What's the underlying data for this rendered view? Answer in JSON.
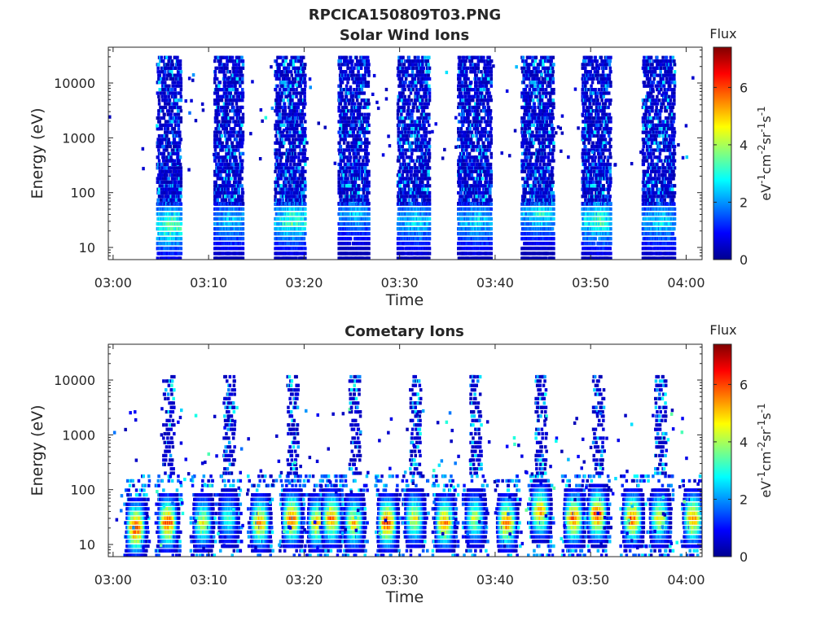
{
  "figure": {
    "filename": "RPCICA150809T03.PNG"
  },
  "colors": {
    "jet": [
      "#00008f",
      "#0000ff",
      "#0080ff",
      "#00ffff",
      "#80ff80",
      "#ffff00",
      "#ff8000",
      "#ff0000",
      "#800000"
    ],
    "axis": "#262626",
    "background": "#ffffff"
  },
  "chart_data": [
    {
      "type": "heatmap",
      "title": "Solar Wind Ions",
      "xlabel": "Time",
      "ylabel": "Energy (eV)",
      "xlim": [
        "02:59:30",
        "04:01:40"
      ],
      "ylim": [
        6,
        45000
      ],
      "y_scale": "log",
      "x_ticks": [
        "03:00",
        "03:10",
        "03:20",
        "03:30",
        "03:40",
        "03:50",
        "04:00"
      ],
      "y_ticks": [
        10,
        100,
        1000,
        10000
      ],
      "y_tick_labels": [
        "10",
        "100",
        "1000",
        "10000"
      ],
      "colorbar": {
        "title": "Flux",
        "label": "eV-1cm-2sr-1s-1",
        "label_parts": [
          [
            "eV",
            ""
          ],
          [
            "-1",
            "sup"
          ],
          [
            "cm",
            ""
          ],
          [
            "-2",
            "sup"
          ],
          [
            "sr",
            ""
          ],
          [
            "-1",
            "sup"
          ],
          [
            "s",
            ""
          ],
          [
            "-1",
            "sup"
          ]
        ],
        "range": [
          0,
          7.4
        ],
        "ticks": [
          0,
          2,
          4,
          6
        ],
        "colormap": "jet"
      },
      "bursts": [
        {
          "start": "03:04:30",
          "end": "03:07:00",
          "peak_energy_eV": 25,
          "peak_flux": 4.6
        },
        {
          "start": "03:10:30",
          "end": "03:13:30",
          "peak_energy_eV": 30,
          "peak_flux": 3.2
        },
        {
          "start": "03:16:50",
          "end": "03:20:00",
          "peak_energy_eV": 30,
          "peak_flux": 4.2
        },
        {
          "start": "03:23:30",
          "end": "03:26:40",
          "peak_energy_eV": 40,
          "peak_flux": 3.0
        },
        {
          "start": "03:29:40",
          "end": "03:33:00",
          "peak_energy_eV": 30,
          "peak_flux": 3.4
        },
        {
          "start": "03:36:00",
          "end": "03:39:30",
          "peak_energy_eV": 30,
          "peak_flux": 3.4
        },
        {
          "start": "03:42:40",
          "end": "03:46:00",
          "peak_energy_eV": 40,
          "peak_flux": 3.6
        },
        {
          "start": "03:49:00",
          "end": "03:52:00",
          "peak_energy_eV": 30,
          "peak_flux": 4.2
        },
        {
          "start": "03:55:20",
          "end": "03:58:40",
          "peak_energy_eV": 30,
          "peak_flux": 3.4
        }
      ]
    },
    {
      "type": "heatmap",
      "title": "Cometary Ions",
      "xlabel": "Time",
      "ylabel": "Energy (eV)",
      "xlim": [
        "02:59:30",
        "04:01:40"
      ],
      "ylim": [
        6,
        45000
      ],
      "y_scale": "log",
      "x_ticks": [
        "03:00",
        "03:10",
        "03:20",
        "03:30",
        "03:40",
        "03:50",
        "04:00"
      ],
      "y_ticks": [
        10,
        100,
        1000,
        10000
      ],
      "y_tick_labels": [
        "10",
        "100",
        "1000",
        "10000"
      ],
      "colorbar": {
        "title": "Flux",
        "label": "eV-1cm-2sr-1s-1",
        "label_parts": [
          [
            "eV",
            ""
          ],
          [
            "-1",
            "sup"
          ],
          [
            "cm",
            ""
          ],
          [
            "-2",
            "sup"
          ],
          [
            "sr",
            ""
          ],
          [
            "-1",
            "sup"
          ],
          [
            "s",
            ""
          ],
          [
            "-1",
            "sup"
          ]
        ],
        "range": [
          0,
          7.4
        ],
        "ticks": [
          0,
          2,
          4,
          6
        ],
        "colormap": "jet"
      },
      "bursts": [
        {
          "time": "03:02:20",
          "peak_energy_eV": 20,
          "peak_flux": 6.8,
          "high_energy_spikes": false
        },
        {
          "time": "03:05:40",
          "peak_energy_eV": 25,
          "peak_flux": 6.5,
          "high_energy_spikes": true
        },
        {
          "time": "03:09:20",
          "peak_energy_eV": 25,
          "peak_flux": 4.8,
          "high_energy_spikes": false
        },
        {
          "time": "03:12:00",
          "peak_energy_eV": 30,
          "peak_flux": 3.5,
          "high_energy_spikes": true
        },
        {
          "time": "03:15:20",
          "peak_energy_eV": 25,
          "peak_flux": 5.8,
          "high_energy_spikes": false
        },
        {
          "time": "03:18:40",
          "peak_energy_eV": 30,
          "peak_flux": 6.4,
          "high_energy_spikes": true
        },
        {
          "time": "03:21:20",
          "peak_energy_eV": 25,
          "peak_flux": 5.5,
          "high_energy_spikes": false
        },
        {
          "time": "03:22:50",
          "peak_energy_eV": 30,
          "peak_flux": 6.0,
          "high_energy_spikes": false
        },
        {
          "time": "03:25:10",
          "peak_energy_eV": 25,
          "peak_flux": 5.2,
          "high_energy_spikes": true
        },
        {
          "time": "03:28:40",
          "peak_energy_eV": 25,
          "peak_flux": 6.6,
          "high_energy_spikes": false
        },
        {
          "time": "03:31:30",
          "peak_energy_eV": 30,
          "peak_flux": 5.0,
          "high_energy_spikes": true
        },
        {
          "time": "03:34:40",
          "peak_energy_eV": 25,
          "peak_flux": 6.0,
          "high_energy_spikes": false
        },
        {
          "time": "03:37:50",
          "peak_energy_eV": 30,
          "peak_flux": 4.5,
          "high_energy_spikes": true
        },
        {
          "time": "03:41:10",
          "peak_energy_eV": 25,
          "peak_flux": 6.2,
          "high_energy_spikes": false
        },
        {
          "time": "03:44:40",
          "peak_energy_eV": 40,
          "peak_flux": 5.8,
          "high_energy_spikes": true
        },
        {
          "time": "03:48:10",
          "peak_energy_eV": 30,
          "peak_flux": 6.2,
          "high_energy_spikes": false
        },
        {
          "time": "03:50:40",
          "peak_energy_eV": 35,
          "peak_flux": 6.5,
          "high_energy_spikes": true
        },
        {
          "time": "03:54:20",
          "peak_energy_eV": 30,
          "peak_flux": 6.3,
          "high_energy_spikes": false
        },
        {
          "time": "03:57:10",
          "peak_energy_eV": 30,
          "peak_flux": 5.0,
          "high_energy_spikes": true
        },
        {
          "time": "04:00:40",
          "peak_energy_eV": 30,
          "peak_flux": 6.0,
          "high_energy_spikes": false
        }
      ]
    }
  ]
}
